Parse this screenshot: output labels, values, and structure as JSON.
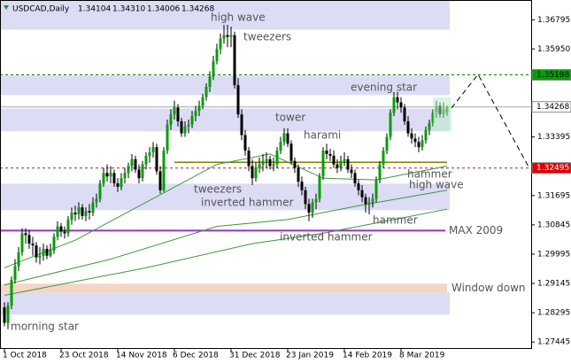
{
  "chart_data": {
    "type": "candlestick",
    "symbol": "USDCAD,Daily",
    "last_labels": [
      "1.34104",
      "1.34310",
      "1.34006",
      "1.34268"
    ],
    "up_color": "#00a000",
    "down_color": "#000000",
    "ylim": [
      1.2727,
      1.3737
    ],
    "yticks": [
      1.36795,
      {
        "value": 1.3595,
        "label": "1.35950"
      },
      1.33395,
      1.31695,
      1.30845,
      1.29995,
      1.29145,
      1.28295,
      1.27445
    ],
    "xticks": [
      {
        "value": 0,
        "label": "1 Oct 2018"
      },
      {
        "value": 16,
        "label": "23 Oct 2018"
      },
      {
        "value": 32,
        "label": "14 Nov 2018"
      },
      {
        "value": 48,
        "label": "6 Dec 2018"
      },
      {
        "value": 64,
        "label": "31 Dec 2018"
      },
      {
        "value": 80,
        "label": "23 Jan 2019"
      },
      {
        "value": 96,
        "label": "14 Feb 2019"
      },
      {
        "value": 112,
        "label": "8 Mar 2019"
      }
    ],
    "ohlc": [
      [
        1.2845,
        1.286,
        1.279,
        1.28
      ],
      [
        1.28,
        1.286,
        1.2782,
        1.285
      ],
      [
        1.285,
        1.2935,
        1.284,
        1.2925
      ],
      [
        1.2925,
        1.2985,
        1.2915,
        1.2965
      ],
      [
        1.2965,
        1.302,
        1.295,
        1.3005
      ],
      [
        1.3005,
        1.3075,
        1.2995,
        1.306
      ],
      [
        1.306,
        1.3075,
        1.303,
        1.3055
      ],
      [
        1.3055,
        1.307,
        1.3015,
        1.303
      ],
      [
        1.303,
        1.305,
        1.2995,
        1.3025
      ],
      [
        1.3025,
        1.3035,
        1.2975,
        1.299
      ],
      [
        1.299,
        1.302,
        1.297,
        1.2995
      ],
      [
        1.2995,
        1.303,
        1.298,
        1.3015
      ],
      [
        1.3015,
        1.3025,
        1.2985,
        1.2995
      ],
      [
        1.2995,
        1.303,
        1.299,
        1.301
      ],
      [
        1.301,
        1.306,
        1.3,
        1.305
      ],
      [
        1.305,
        1.3095,
        1.304,
        1.308
      ],
      [
        1.308,
        1.309,
        1.305,
        1.3065
      ],
      [
        1.3065,
        1.308,
        1.3045,
        1.306
      ],
      [
        1.306,
        1.311,
        1.305,
        1.31
      ],
      [
        1.31,
        1.3135,
        1.3085,
        1.312
      ],
      [
        1.312,
        1.314,
        1.3095,
        1.3115
      ],
      [
        1.3115,
        1.315,
        1.31,
        1.3135
      ],
      [
        1.3135,
        1.3145,
        1.31,
        1.311
      ],
      [
        1.311,
        1.3135,
        1.3095,
        1.3125
      ],
      [
        1.3125,
        1.3145,
        1.31,
        1.312
      ],
      [
        1.312,
        1.3165,
        1.311,
        1.315
      ],
      [
        1.315,
        1.3175,
        1.3135,
        1.316
      ],
      [
        1.316,
        1.3215,
        1.315,
        1.3205
      ],
      [
        1.3205,
        1.325,
        1.3195,
        1.3235
      ],
      [
        1.3235,
        1.326,
        1.321,
        1.3225
      ],
      [
        1.3225,
        1.3255,
        1.3205,
        1.3235
      ],
      [
        1.3235,
        1.3245,
        1.3195,
        1.3205
      ],
      [
        1.3205,
        1.322,
        1.318,
        1.3195
      ],
      [
        1.3195,
        1.3235,
        1.3185,
        1.322
      ],
      [
        1.322,
        1.325,
        1.3205,
        1.3235
      ],
      [
        1.3235,
        1.3265,
        1.322,
        1.3255
      ],
      [
        1.3255,
        1.329,
        1.324,
        1.3275
      ],
      [
        1.3275,
        1.3285,
        1.3235,
        1.3245
      ],
      [
        1.3245,
        1.326,
        1.3205,
        1.322
      ],
      [
        1.322,
        1.327,
        1.321,
        1.326
      ],
      [
        1.326,
        1.3295,
        1.3245,
        1.3285
      ],
      [
        1.3285,
        1.331,
        1.3265,
        1.3295
      ],
      [
        1.3295,
        1.3325,
        1.328,
        1.331
      ],
      [
        1.331,
        1.332,
        1.323,
        1.324
      ],
      [
        1.324,
        1.3255,
        1.3175,
        1.3185
      ],
      [
        1.3185,
        1.331,
        1.318,
        1.33
      ],
      [
        1.33,
        1.339,
        1.329,
        1.3375
      ],
      [
        1.3375,
        1.342,
        1.336,
        1.3405
      ],
      [
        1.3405,
        1.3445,
        1.339,
        1.3425
      ],
      [
        1.3425,
        1.3435,
        1.337,
        1.3385
      ],
      [
        1.3385,
        1.3395,
        1.334,
        1.335
      ],
      [
        1.335,
        1.3385,
        1.334,
        1.337
      ],
      [
        1.337,
        1.339,
        1.335,
        1.3375
      ],
      [
        1.3375,
        1.3415,
        1.3365,
        1.34
      ],
      [
        1.34,
        1.343,
        1.3385,
        1.3415
      ],
      [
        1.3415,
        1.3445,
        1.34,
        1.343
      ],
      [
        1.343,
        1.3465,
        1.342,
        1.3455
      ],
      [
        1.3455,
        1.3495,
        1.3445,
        1.3485
      ],
      [
        1.3485,
        1.353,
        1.347,
        1.3515
      ],
      [
        1.3515,
        1.3575,
        1.3505,
        1.356
      ],
      [
        1.356,
        1.361,
        1.355,
        1.3595
      ],
      [
        1.3595,
        1.364,
        1.358,
        1.3625
      ],
      [
        1.3625,
        1.3665,
        1.361,
        1.3635
      ],
      [
        1.3635,
        1.3665,
        1.36,
        1.363
      ],
      [
        1.363,
        1.366,
        1.36,
        1.3635
      ],
      [
        1.3635,
        1.3645,
        1.348,
        1.349
      ],
      [
        1.349,
        1.351,
        1.3395,
        1.3405
      ],
      [
        1.3405,
        1.342,
        1.333,
        1.3345
      ],
      [
        1.3345,
        1.336,
        1.3285,
        1.33
      ],
      [
        1.33,
        1.331,
        1.324,
        1.3255
      ],
      [
        1.3255,
        1.3275,
        1.32,
        1.322
      ],
      [
        1.322,
        1.3265,
        1.321,
        1.325
      ],
      [
        1.325,
        1.328,
        1.3235,
        1.326
      ],
      [
        1.326,
        1.329,
        1.324,
        1.327
      ],
      [
        1.327,
        1.3295,
        1.325,
        1.3275
      ],
      [
        1.3275,
        1.3285,
        1.3245,
        1.3255
      ],
      [
        1.3255,
        1.328,
        1.324,
        1.326
      ],
      [
        1.326,
        1.331,
        1.325,
        1.33
      ],
      [
        1.33,
        1.334,
        1.329,
        1.3325
      ],
      [
        1.3325,
        1.3365,
        1.3315,
        1.335
      ],
      [
        1.335,
        1.3365,
        1.331,
        1.332
      ],
      [
        1.332,
        1.333,
        1.326,
        1.327
      ],
      [
        1.327,
        1.328,
        1.3235,
        1.325
      ],
      [
        1.325,
        1.326,
        1.3195,
        1.321
      ],
      [
        1.321,
        1.3225,
        1.317,
        1.3185
      ],
      [
        1.3185,
        1.3195,
        1.313,
        1.3145
      ],
      [
        1.3145,
        1.316,
        1.3095,
        1.312
      ],
      [
        1.312,
        1.316,
        1.3105,
        1.315
      ],
      [
        1.315,
        1.3175,
        1.313,
        1.316
      ],
      [
        1.316,
        1.3235,
        1.315,
        1.3225
      ],
      [
        1.3225,
        1.331,
        1.3215,
        1.33
      ],
      [
        1.33,
        1.332,
        1.3275,
        1.329
      ],
      [
        1.329,
        1.3305,
        1.327,
        1.3285
      ],
      [
        1.3285,
        1.33,
        1.325,
        1.326
      ],
      [
        1.326,
        1.3275,
        1.3235,
        1.325
      ],
      [
        1.325,
        1.3285,
        1.324,
        1.327
      ],
      [
        1.327,
        1.3295,
        1.3255,
        1.3275
      ],
      [
        1.3275,
        1.3285,
        1.3235,
        1.3245
      ],
      [
        1.3245,
        1.326,
        1.322,
        1.3235
      ],
      [
        1.3235,
        1.3245,
        1.3195,
        1.3205
      ],
      [
        1.3205,
        1.3215,
        1.317,
        1.3185
      ],
      [
        1.3185,
        1.32,
        1.315,
        1.3165
      ],
      [
        1.3165,
        1.3175,
        1.312,
        1.3145
      ],
      [
        1.3145,
        1.3165,
        1.3115,
        1.315
      ],
      [
        1.315,
        1.3175,
        1.3135,
        1.316
      ],
      [
        1.316,
        1.3225,
        1.315,
        1.3215
      ],
      [
        1.3215,
        1.327,
        1.3205,
        1.326
      ],
      [
        1.326,
        1.331,
        1.325,
        1.33
      ],
      [
        1.33,
        1.335,
        1.329,
        1.334
      ],
      [
        1.334,
        1.342,
        1.333,
        1.341
      ],
      [
        1.341,
        1.347,
        1.34,
        1.3455
      ],
      [
        1.3455,
        1.347,
        1.342,
        1.344
      ],
      [
        1.344,
        1.3455,
        1.341,
        1.3425
      ],
      [
        1.3425,
        1.3435,
        1.3375,
        1.3385
      ],
      [
        1.3385,
        1.34,
        1.334,
        1.335
      ],
      [
        1.335,
        1.3365,
        1.332,
        1.3335
      ],
      [
        1.3335,
        1.335,
        1.331,
        1.3325
      ],
      [
        1.3325,
        1.334,
        1.3295,
        1.331
      ],
      [
        1.331,
        1.3345,
        1.33,
        1.333
      ],
      [
        1.333,
        1.337,
        1.332,
        1.336
      ],
      [
        1.336,
        1.339,
        1.3345,
        1.338
      ],
      [
        1.338,
        1.342,
        1.337,
        1.341
      ],
      [
        1.341,
        1.3445,
        1.3395,
        1.343
      ],
      [
        1.343,
        1.344,
        1.3395,
        1.3405
      ],
      [
        1.3405,
        1.344,
        1.3395,
        1.342
      ],
      [
        1.34104,
        1.3431,
        1.34006,
        1.34268
      ]
    ],
    "lines": [
      {
        "color": "#3c9a3c",
        "x": [
          0,
          20,
          40,
          60,
          75,
          90,
          105,
          125
        ],
        "values": [
          1.296,
          1.304,
          1.315,
          1.326,
          1.329,
          1.322,
          1.3215,
          1.3255
        ]
      },
      {
        "color": "#3c9a3c",
        "x": [
          0,
          30,
          60,
          80,
          100,
          125
        ],
        "values": [
          1.291,
          1.2985,
          1.308,
          1.31,
          1.314,
          1.3185
        ]
      },
      {
        "color": "#3c9a3c",
        "x": [
          0,
          40,
          70,
          90,
          110,
          125
        ],
        "values": [
          1.288,
          1.296,
          1.303,
          1.306,
          1.31,
          1.313
        ]
      }
    ],
    "levels": [
      {
        "value": 1.35198,
        "color": "#008000",
        "style": "dashed",
        "label_bg": "#00a000",
        "label_fg": "#000000"
      },
      {
        "value": 1.34268,
        "color": "#a8a8a8",
        "style": "solid",
        "label_bg": "#ffffff",
        "label_fg": "#000000"
      },
      {
        "value": 1.32495,
        "color": "#b22222",
        "style": "dashed",
        "label_bg": "#e00000",
        "label_fg": "#ffffff"
      }
    ],
    "zones": [
      [
        1.3651,
        1.3737
      ],
      [
        1.3461,
        1.3518
      ],
      [
        1.3356,
        1.3422
      ],
      [
        1.3127,
        1.3204
      ],
      [
        1.2824,
        1.2888
      ]
    ],
    "zone_color": "#dcdcf5",
    "marked_levels": [
      {
        "text": "MAX 2009",
        "value": 1.3068,
        "color": "#9932cc"
      },
      {
        "text": "Window down",
        "value": 1.2901,
        "color": "#c8964b"
      }
    ],
    "support": {
      "value": 1.3266,
      "from": 48,
      "color": "#808000"
    },
    "annotations": [
      "high wave",
      "tweezers",
      "evening star",
      "tower",
      "harami",
      "hammer",
      "high wave",
      "tweezers",
      "inverted hammer",
      "hammer",
      "inverted hammer",
      "morning star"
    ]
  }
}
